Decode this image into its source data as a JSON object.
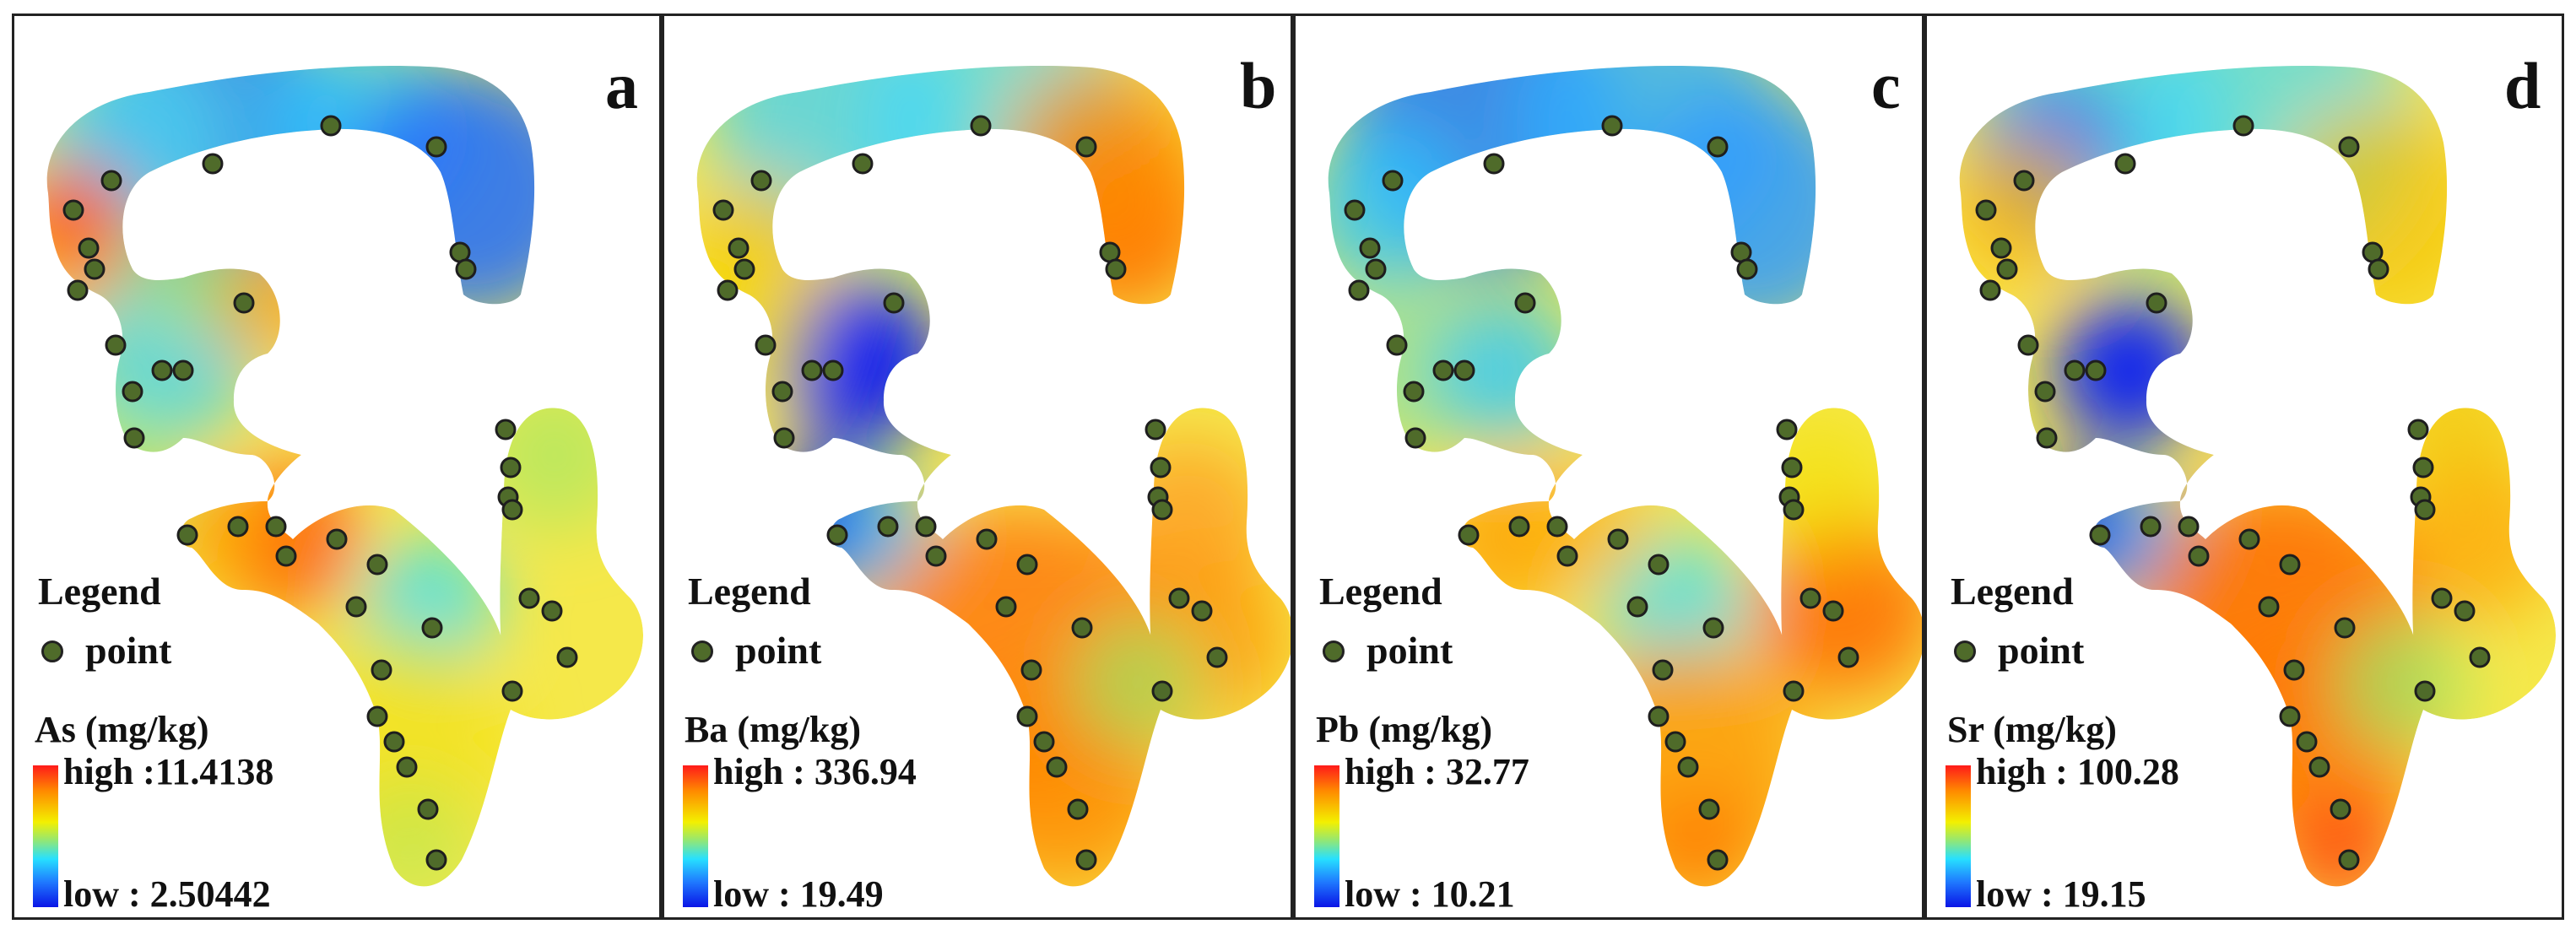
{
  "panels": [
    {
      "letter": "a",
      "element_label": "As (mg/kg)",
      "high_label": "high :11.4138",
      "low_label": "low : 2.50442",
      "legend_title": "Legend",
      "point_label": "point"
    },
    {
      "letter": "b",
      "element_label": "Ba  (mg/kg)",
      "high_label": "high : 336.94",
      "low_label": "low : 19.49",
      "legend_title": "Legend",
      "point_label": "point"
    },
    {
      "letter": "c",
      "element_label": "Pb (mg/kg)",
      "high_label": "high : 32.77",
      "low_label": "low : 10.21",
      "legend_title": "Legend",
      "point_label": "point"
    },
    {
      "letter": "d",
      "element_label": "Sr (mg/kg)",
      "high_label": "high : 100.28",
      "low_label": "low : 19.15",
      "legend_title": "Legend",
      "point_label": "point"
    }
  ],
  "colors": {
    "ramp_high": "#ff1a1a",
    "ramp_mid": "#f3f000",
    "ramp_low": "#0a14e6",
    "sample_point": "#4f6b2a"
  }
}
